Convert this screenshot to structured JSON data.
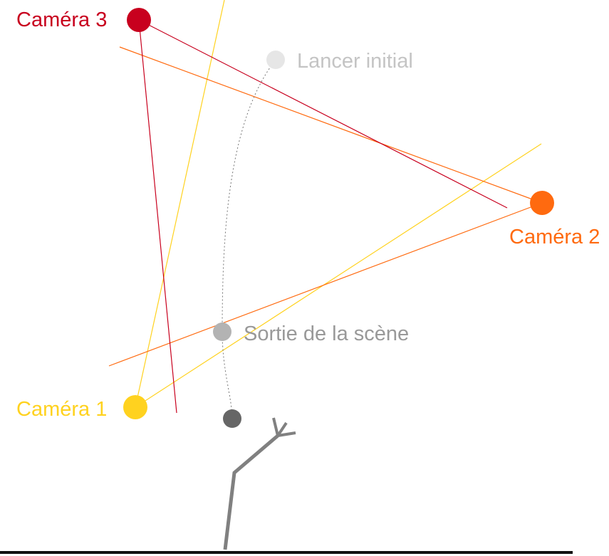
{
  "labels": {
    "camera3": "Caméra 3",
    "camera2": "Caméra 2",
    "camera1": "Caméra 1",
    "initial_throw": "Lancer initial",
    "scene_exit": "Sortie de la scène"
  },
  "colors": {
    "camera1": "#ffd21f",
    "camera2": "#ff6a0f",
    "camera3": "#c8001e",
    "initial_point": "#e6e6e6",
    "initial_label": "#c4c4c4",
    "exit_point": "#b3b3b3",
    "exit_label": "#999999",
    "ball": "#666666",
    "figure": "#808080",
    "ground": "#111111",
    "trajectory": "#777777"
  }
}
